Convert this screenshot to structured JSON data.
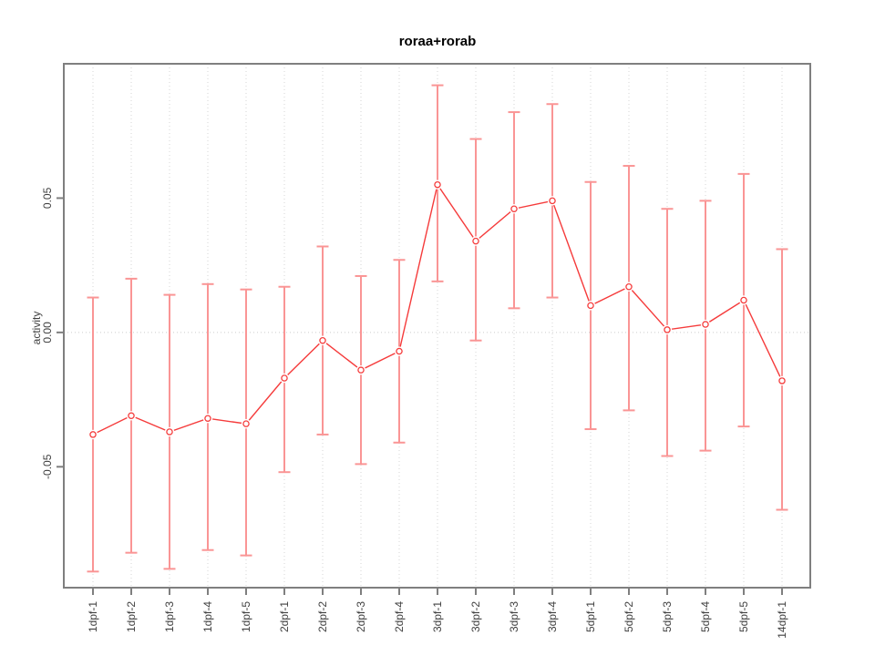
{
  "title": "roraa+rorab",
  "chart_data": {
    "type": "line",
    "title": "roraa+rorab",
    "xlabel": "",
    "ylabel": "activity",
    "legend": "none",
    "grid": "vertical dotted gridline at every category; horizontal dotted gridline at y=0",
    "point_marker": "open-circle",
    "error_bars": "symmetric, capped whiskers",
    "categories": [
      "1dpf-1",
      "1dpf-2",
      "1dpf-3",
      "1dpf-4",
      "1dpf-5",
      "2dpf-1",
      "2dpf-2",
      "2dpf-3",
      "2dpf-4",
      "3dpf-1",
      "3dpf-2",
      "3dpf-3",
      "3dpf-4",
      "5dpf-1",
      "5dpf-2",
      "5dpf-3",
      "5dpf-4",
      "5dpf-5",
      "14dpf-1"
    ],
    "series": [
      {
        "name": "activity",
        "values": [
          -0.038,
          -0.031,
          -0.037,
          -0.032,
          -0.034,
          -0.017,
          -0.003,
          -0.014,
          -0.007,
          0.055,
          0.034,
          0.046,
          0.049,
          0.01,
          0.017,
          0.001,
          0.003,
          0.012,
          -0.018
        ],
        "error_upper": [
          0.013,
          0.02,
          0.014,
          0.018,
          0.016,
          0.017,
          0.032,
          0.021,
          0.027,
          0.092,
          0.072,
          0.082,
          0.085,
          0.056,
          0.062,
          0.046,
          0.049,
          0.059,
          0.031
        ],
        "error_lower": [
          -0.089,
          -0.082,
          -0.088,
          -0.081,
          -0.083,
          -0.052,
          -0.038,
          -0.049,
          -0.041,
          0.019,
          -0.003,
          0.009,
          0.013,
          -0.036,
          -0.029,
          -0.046,
          -0.044,
          -0.035,
          -0.066
        ]
      }
    ],
    "yticks": [
      -0.05,
      0,
      0.05
    ],
    "ytick_labels": [
      "-0.05",
      "0.00",
      "0.05"
    ],
    "ylim": [
      -0.095,
      0.1
    ],
    "colors": {
      "line": "#f53b3b",
      "point": "#f53b3b",
      "point_fill": "#ffffff",
      "error_bar": "#fa9595",
      "grid": "#d6d6d6",
      "zero_line": "#cccccc",
      "frame": "#7f7f7f",
      "tick_text": "#404040",
      "title_text": "#000000",
      "background": "#ffffff"
    }
  }
}
